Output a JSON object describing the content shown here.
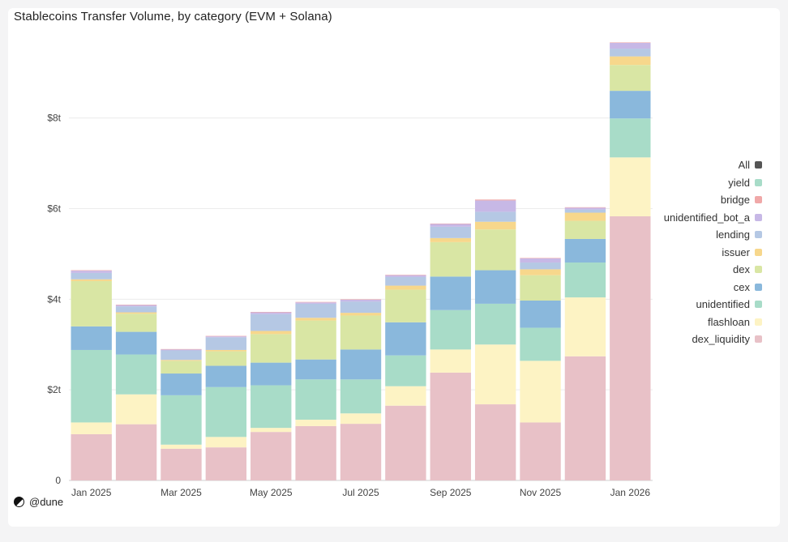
{
  "chart_data": {
    "type": "bar",
    "stacked": true,
    "title": "Stablecoins Transfer Volume, by category (EVM + Solana)",
    "xlabel": "",
    "ylabel": "",
    "ylim": [
      0,
      9.8
    ],
    "y_unit": "trillion USD",
    "y_ticks": [
      {
        "value": 0,
        "label": "0"
      },
      {
        "value": 2,
        "label": "$2t"
      },
      {
        "value": 4,
        "label": "$4t"
      },
      {
        "value": 6,
        "label": "$6t"
      },
      {
        "value": 8,
        "label": "$8t"
      }
    ],
    "categories": [
      "2025-01",
      "2025-02",
      "2025-03",
      "2025-04",
      "2025-05",
      "2025-06",
      "2025-07",
      "2025-08",
      "2025-09",
      "2025-10",
      "2025-11",
      "2025-12",
      "2026-01"
    ],
    "x_tick_labels": [
      {
        "index": 0,
        "label": "Jan 2025"
      },
      {
        "index": 2,
        "label": "Mar 2025"
      },
      {
        "index": 4,
        "label": "May 2025"
      },
      {
        "index": 6,
        "label": "Jul 2025"
      },
      {
        "index": 8,
        "label": "Sep 2025"
      },
      {
        "index": 10,
        "label": "Nov 2025"
      },
      {
        "index": 12,
        "label": "Jan 2026"
      }
    ],
    "grid": true,
    "legend_position": "right",
    "series": [
      {
        "name": "dex_liquidity",
        "color": "#e8c1c7",
        "values": [
          1.02,
          1.24,
          0.7,
          0.73,
          1.07,
          1.2,
          1.25,
          1.65,
          2.38,
          1.68,
          1.28,
          2.74,
          5.83
        ]
      },
      {
        "name": "flashloan",
        "color": "#fdf3c4",
        "values": [
          0.26,
          0.66,
          0.09,
          0.23,
          0.09,
          0.14,
          0.23,
          0.43,
          0.51,
          1.32,
          1.36,
          1.3,
          1.3
        ]
      },
      {
        "name": "unidentified",
        "color": "#a8dcc8",
        "values": [
          1.6,
          0.88,
          1.09,
          1.1,
          0.94,
          0.89,
          0.75,
          0.68,
          0.87,
          0.9,
          0.73,
          0.77,
          0.86
        ]
      },
      {
        "name": "cex",
        "color": "#8ab8dc",
        "values": [
          0.52,
          0.5,
          0.48,
          0.47,
          0.5,
          0.44,
          0.66,
          0.73,
          0.74,
          0.74,
          0.6,
          0.52,
          0.61
        ]
      },
      {
        "name": "dex",
        "color": "#d9e6a4",
        "values": [
          1.0,
          0.4,
          0.28,
          0.32,
          0.63,
          0.86,
          0.75,
          0.72,
          0.76,
          0.9,
          0.56,
          0.4,
          0.57
        ]
      },
      {
        "name": "issuer",
        "color": "#f7d78c",
        "values": [
          0.04,
          0.03,
          0.02,
          0.03,
          0.07,
          0.06,
          0.06,
          0.09,
          0.09,
          0.17,
          0.13,
          0.18,
          0.19
        ]
      },
      {
        "name": "lending",
        "color": "#b5c8e4",
        "values": [
          0.14,
          0.13,
          0.21,
          0.28,
          0.37,
          0.31,
          0.25,
          0.19,
          0.25,
          0.22,
          0.15,
          0.07,
          0.17
        ]
      },
      {
        "name": "unidentified_bot_a",
        "color": "#c7b8e6",
        "values": [
          0.05,
          0.03,
          0.02,
          0.02,
          0.04,
          0.03,
          0.04,
          0.04,
          0.06,
          0.25,
          0.09,
          0.04,
          0.13
        ]
      },
      {
        "name": "bridge",
        "color": "#f0a8a8",
        "values": [
          0.01,
          0.01,
          0.01,
          0.01,
          0.01,
          0.01,
          0.01,
          0.01,
          0.01,
          0.02,
          0.01,
          0.01,
          0.01
        ]
      },
      {
        "name": "yield",
        "color": "#bfe6d8",
        "values": [
          0,
          0,
          0,
          0,
          0,
          0,
          0,
          0,
          0,
          0,
          0,
          0,
          0
        ]
      }
    ]
  },
  "legend": [
    {
      "label": "All",
      "color": "#555555"
    },
    {
      "label": "yield",
      "color": "#a8dcc8"
    },
    {
      "label": "bridge",
      "color": "#f0a8a8"
    },
    {
      "label": "unidentified_bot_a",
      "color": "#c7b8e6"
    },
    {
      "label": "lending",
      "color": "#b5c8e4"
    },
    {
      "label": "issuer",
      "color": "#f7d78c"
    },
    {
      "label": "dex",
      "color": "#d9e6a4"
    },
    {
      "label": "cex",
      "color": "#8ab8dc"
    },
    {
      "label": "unidentified",
      "color": "#a8dcc8"
    },
    {
      "label": "flashloan",
      "color": "#fdf3c4"
    },
    {
      "label": "dex_liquidity",
      "color": "#e8c1c7"
    }
  ],
  "brand": {
    "label": "@dune"
  }
}
